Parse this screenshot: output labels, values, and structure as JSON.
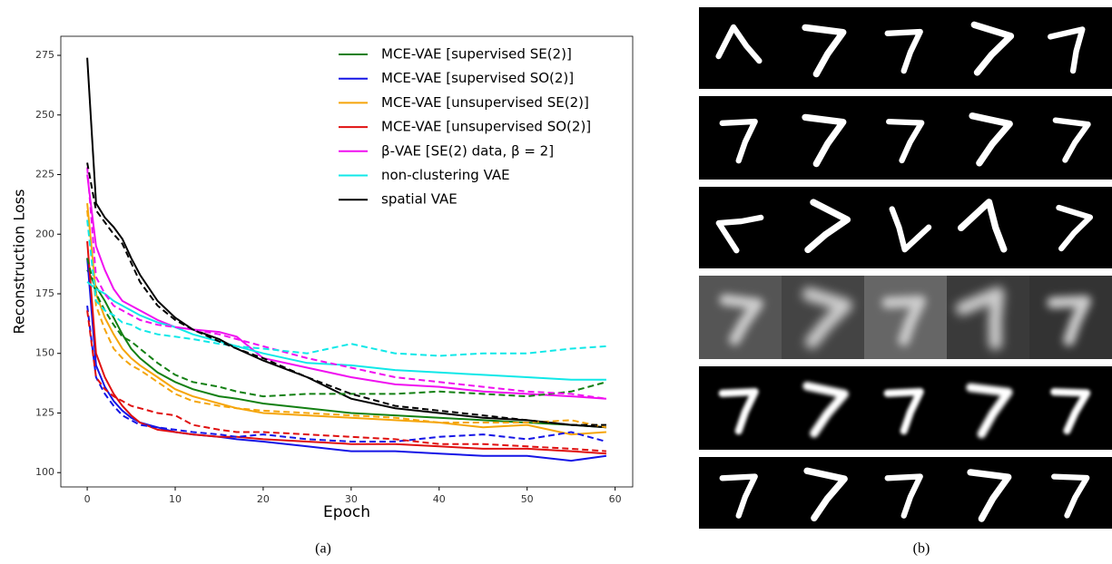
{
  "chart_data": {
    "type": "line",
    "x_label": "Epoch",
    "y_label": "Reconstruction Loss",
    "x": [
      0,
      1,
      2,
      3,
      4,
      5,
      6,
      8,
      10,
      12,
      15,
      17,
      20,
      25,
      30,
      35,
      40,
      45,
      50,
      55,
      59
    ],
    "xlim": [
      -3,
      62
    ],
    "ylim": [
      94,
      283
    ],
    "xticks": [
      0,
      10,
      20,
      30,
      40,
      50,
      60
    ],
    "yticks": [
      100,
      125,
      150,
      175,
      200,
      225,
      250,
      275
    ],
    "legend": "upper right",
    "series": [
      {
        "name": "MCE-VAE [supervised SE(2)]",
        "color": "#138013",
        "style": "solid",
        "values": [
          185,
          178,
          172,
          165,
          158,
          152,
          148,
          142,
          138,
          135,
          132,
          131,
          129,
          127,
          125,
          124,
          123,
          122,
          121,
          120,
          119
        ]
      },
      {
        "name": "MCE-VAE [supervised SO(2)]",
        "color": "#1515e6",
        "style": "solid",
        "values": [
          190,
          145,
          136,
          130,
          126,
          123,
          121,
          119,
          117,
          116,
          115,
          114,
          113,
          111,
          109,
          109,
          108,
          107,
          107,
          105,
          107
        ]
      },
      {
        "name": "MCE-VAE [unsupervised SE(2)]",
        "color": "#f5a50a",
        "style": "solid",
        "values": [
          213,
          175,
          165,
          158,
          152,
          148,
          145,
          140,
          135,
          132,
          129,
          127,
          125,
          124,
          123,
          122,
          121,
          119,
          120,
          116,
          117
        ]
      },
      {
        "name": "MCE-VAE [unsupervised SO(2)]",
        "color": "#e01010",
        "style": "solid",
        "values": [
          197,
          150,
          140,
          133,
          128,
          124,
          121,
          118,
          117,
          116,
          115,
          115,
          114,
          113,
          112,
          112,
          111,
          110,
          110,
          109,
          108
        ]
      },
      {
        "name": "β-VAE [SE(2) data, β = 2]",
        "color": "#f010f0",
        "style": "solid",
        "values": [
          225,
          195,
          185,
          177,
          172,
          170,
          168,
          164,
          161,
          160,
          159,
          157,
          148,
          144,
          140,
          137,
          136,
          134,
          133,
          132,
          131
        ]
      },
      {
        "name": "non-clustering VAE",
        "color": "#10e8e8",
        "style": "solid",
        "values": [
          180,
          177,
          175,
          172,
          170,
          168,
          166,
          163,
          161,
          158,
          155,
          153,
          150,
          146,
          145,
          143,
          142,
          141,
          140,
          139,
          139
        ]
      },
      {
        "name": "spatial VAE",
        "color": "#000000",
        "style": "solid",
        "values": [
          274,
          213,
          207,
          203,
          198,
          190,
          183,
          172,
          165,
          160,
          156,
          152,
          147,
          140,
          131,
          127,
          125,
          123,
          122,
          120,
          119
        ]
      },
      {
        "color": "#138013",
        "style": "dashed",
        "values": [
          190,
          175,
          168,
          162,
          157,
          155,
          152,
          146,
          141,
          138,
          136,
          134,
          132,
          133,
          133,
          133,
          134,
          133,
          132,
          134,
          138
        ]
      },
      {
        "color": "#1515e6",
        "style": "dashed",
        "values": [
          170,
          140,
          133,
          128,
          124,
          122,
          120,
          119,
          118,
          117,
          116,
          115,
          116,
          114,
          113,
          113,
          115,
          116,
          114,
          117,
          113
        ]
      },
      {
        "color": "#f5a50a",
        "style": "dashed",
        "values": [
          210,
          170,
          160,
          152,
          148,
          145,
          143,
          138,
          133,
          130,
          128,
          127,
          126,
          125,
          124,
          123,
          121,
          121,
          121,
          122,
          119
        ]
      },
      {
        "color": "#e01010",
        "style": "dashed",
        "values": [
          168,
          140,
          135,
          132,
          130,
          128,
          127,
          125,
          124,
          120,
          118,
          117,
          117,
          116,
          115,
          114,
          112,
          112,
          111,
          110,
          109
        ]
      },
      {
        "color": "#f010f0",
        "style": "dashed",
        "values": [
          228,
          182,
          175,
          170,
          168,
          166,
          164,
          162,
          161,
          160,
          158,
          156,
          153,
          148,
          144,
          140,
          138,
          136,
          134,
          133,
          131
        ]
      },
      {
        "color": "#10e8e8",
        "style": "dashed",
        "values": [
          206,
          172,
          168,
          166,
          163,
          162,
          160,
          158,
          157,
          156,
          154,
          153,
          152,
          150,
          154,
          150,
          149,
          150,
          150,
          152,
          153
        ]
      },
      {
        "color": "#000000",
        "style": "dashed",
        "values": [
          230,
          210,
          205,
          200,
          196,
          188,
          180,
          170,
          164,
          160,
          155,
          152,
          148,
          140,
          133,
          128,
          126,
          124,
          122,
          120,
          120
        ]
      }
    ]
  },
  "captions": [
    "(a)",
    "(b)"
  ]
}
